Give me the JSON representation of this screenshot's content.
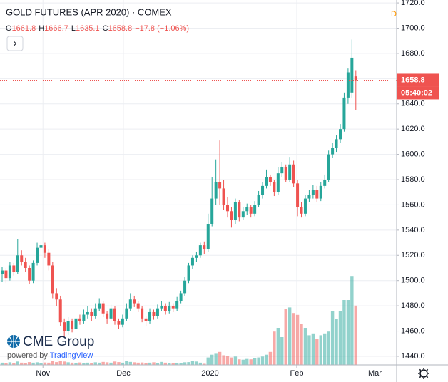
{
  "header": {
    "title": "GOLD FUTURES (APR 2020) · COMEX",
    "ohlc_labels": [
      "O",
      "H",
      "L",
      "C"
    ],
    "change": "−17.8 (−1.06%)",
    "interval": "D",
    "button": "›",
    "countdown": "05:40:02",
    "logo": "CME Group",
    "powered_by": "powered by",
    "powered_brand": "TradingView"
  },
  "chart_data": {
    "type": "candlestick",
    "candles": [
      [
        1505,
        1511,
        1499,
        1508
      ],
      [
        1508,
        1510,
        1498,
        1502
      ],
      [
        1502,
        1515,
        1500,
        1512
      ],
      [
        1512,
        1514,
        1504,
        1507
      ],
      [
        1507,
        1533,
        1505,
        1520
      ],
      [
        1520,
        1524,
        1512,
        1515
      ],
      [
        1515,
        1518,
        1507,
        1510
      ],
      [
        1510,
        1512,
        1497,
        1500
      ],
      [
        1500,
        1516,
        1498,
        1514
      ],
      [
        1514,
        1530,
        1512,
        1526
      ],
      [
        1526,
        1531,
        1520,
        1528
      ],
      [
        1528,
        1530,
        1518,
        1522
      ],
      [
        1522,
        1525,
        1508,
        1512
      ],
      [
        1512,
        1515,
        1486,
        1490
      ],
      [
        1490,
        1494,
        1480,
        1485
      ],
      [
        1485,
        1488,
        1464,
        1467
      ],
      [
        1467,
        1470,
        1455,
        1460
      ],
      [
        1460,
        1471,
        1457,
        1468
      ],
      [
        1468,
        1470,
        1459,
        1462
      ],
      [
        1462,
        1474,
        1460,
        1470
      ],
      [
        1470,
        1473,
        1465,
        1468
      ],
      [
        1468,
        1477,
        1466,
        1473
      ],
      [
        1473,
        1480,
        1470,
        1475
      ],
      [
        1475,
        1478,
        1468,
        1472
      ],
      [
        1472,
        1482,
        1470,
        1478
      ],
      [
        1478,
        1486,
        1476,
        1482
      ],
      [
        1482,
        1484,
        1471,
        1474
      ],
      [
        1474,
        1476,
        1466,
        1470
      ],
      [
        1470,
        1481,
        1468,
        1478
      ],
      [
        1478,
        1480,
        1465,
        1468
      ],
      [
        1468,
        1470,
        1462,
        1465
      ],
      [
        1465,
        1473,
        1463,
        1470
      ],
      [
        1470,
        1482,
        1468,
        1478
      ],
      [
        1478,
        1490,
        1476,
        1485
      ],
      [
        1485,
        1488,
        1479,
        1482
      ],
      [
        1482,
        1484,
        1475,
        1478
      ],
      [
        1478,
        1480,
        1467,
        1470
      ],
      [
        1470,
        1472,
        1464,
        1468
      ],
      [
        1468,
        1478,
        1466,
        1475
      ],
      [
        1475,
        1477,
        1469,
        1472
      ],
      [
        1472,
        1481,
        1470,
        1478
      ],
      [
        1478,
        1484,
        1476,
        1480
      ],
      [
        1480,
        1482,
        1473,
        1476
      ],
      [
        1476,
        1483,
        1474,
        1480
      ],
      [
        1480,
        1482,
        1475,
        1478
      ],
      [
        1478,
        1487,
        1476,
        1484
      ],
      [
        1484,
        1492,
        1482,
        1490
      ],
      [
        1490,
        1503,
        1488,
        1500
      ],
      [
        1500,
        1514,
        1498,
        1512
      ],
      [
        1512,
        1520,
        1509,
        1518
      ],
      [
        1518,
        1523,
        1515,
        1520
      ],
      [
        1520,
        1530,
        1518,
        1528
      ],
      [
        1528,
        1531,
        1521,
        1525
      ],
      [
        1525,
        1553,
        1523,
        1545
      ],
      [
        1545,
        1582,
        1543,
        1565
      ],
      [
        1565,
        1596,
        1560,
        1578
      ],
      [
        1578,
        1611,
        1560,
        1573
      ],
      [
        1573,
        1580,
        1556,
        1560
      ],
      [
        1560,
        1566,
        1550,
        1555
      ],
      [
        1555,
        1558,
        1542,
        1548
      ],
      [
        1548,
        1565,
        1545,
        1562
      ],
      [
        1562,
        1564,
        1547,
        1550
      ],
      [
        1550,
        1558,
        1548,
        1555
      ],
      [
        1555,
        1561,
        1552,
        1558
      ],
      [
        1558,
        1560,
        1550,
        1553
      ],
      [
        1553,
        1563,
        1551,
        1560
      ],
      [
        1560,
        1571,
        1558,
        1568
      ],
      [
        1568,
        1578,
        1565,
        1575
      ],
      [
        1575,
        1588,
        1573,
        1582
      ],
      [
        1582,
        1584,
        1575,
        1578
      ],
      [
        1578,
        1580,
        1567,
        1570
      ],
      [
        1570,
        1590,
        1568,
        1585
      ],
      [
        1585,
        1594,
        1582,
        1590
      ],
      [
        1590,
        1592,
        1578,
        1580
      ],
      [
        1580,
        1598,
        1578,
        1592
      ],
      [
        1592,
        1595,
        1574,
        1577
      ],
      [
        1577,
        1580,
        1551,
        1558
      ],
      [
        1558,
        1562,
        1550,
        1553
      ],
      [
        1553,
        1568,
        1551,
        1565
      ],
      [
        1565,
        1572,
        1562,
        1568
      ],
      [
        1568,
        1576,
        1565,
        1572
      ],
      [
        1572,
        1575,
        1562,
        1565
      ],
      [
        1565,
        1578,
        1563,
        1575
      ],
      [
        1575,
        1584,
        1573,
        1580
      ],
      [
        1580,
        1603,
        1578,
        1600
      ],
      [
        1600,
        1609,
        1597,
        1605
      ],
      [
        1605,
        1615,
        1602,
        1612
      ],
      [
        1612,
        1624,
        1609,
        1620
      ],
      [
        1620,
        1649,
        1618,
        1645
      ],
      [
        1645,
        1668,
        1640,
        1665
      ],
      [
        1649,
        1691,
        1645,
        1676.6
      ],
      [
        1661.8,
        1666.7,
        1635.1,
        1658.8
      ]
    ],
    "volume": [
      12,
      10,
      14,
      11,
      18,
      12,
      10,
      15,
      12,
      14,
      11,
      13,
      12,
      20,
      15,
      22,
      18,
      14,
      12,
      11,
      13,
      10,
      12,
      11,
      14,
      12,
      16,
      14,
      12,
      18,
      15,
      12,
      20,
      16,
      14,
      12,
      13,
      10,
      12,
      14,
      11,
      16,
      12,
      10,
      8,
      9,
      11,
      14,
      15,
      20,
      18,
      12,
      6,
      40,
      55,
      60,
      70,
      52,
      48,
      40,
      45,
      30,
      28,
      32,
      30,
      35,
      40,
      45,
      55,
      70,
      180,
      200,
      150,
      300,
      310,
      280,
      270,
      220,
      200,
      160,
      170,
      140,
      160,
      170,
      180,
      290,
      250,
      290,
      350,
      350,
      480,
      320
    ],
    "up_color": "#26a69a",
    "down_color": "#ef5350",
    "xlim": [
      -0.55,
      101.5
    ],
    "xticks": [
      {
        "value": 10.5,
        "label": "Nov"
      },
      {
        "value": 31.2,
        "label": "Dec"
      },
      {
        "value": 53.5,
        "label": "2020"
      },
      {
        "value": 75.8,
        "label": "Feb"
      },
      {
        "value": 95.9,
        "label": "Mar"
      }
    ],
    "ylim": [
      1433.2,
      1722.3
    ],
    "yticks": [
      {
        "value": 1440,
        "label": "1440.0"
      },
      {
        "value": 1460,
        "label": "1460.0"
      },
      {
        "value": 1480,
        "label": "1480.0"
      },
      {
        "value": 1500,
        "label": "1500.0"
      },
      {
        "value": 1520,
        "label": "1520.0"
      },
      {
        "value": 1540,
        "label": "1540.0"
      },
      {
        "value": 1560,
        "label": "1560.0"
      },
      {
        "value": 1580,
        "label": "1580.0"
      },
      {
        "value": 1600,
        "label": "1600.0"
      },
      {
        "value": 1620,
        "label": "1620.0"
      },
      {
        "value": 1640,
        "label": "1640.0"
      },
      {
        "value": 1660,
        "label": "1660.0"
      },
      {
        "value": 1680,
        "label": "1680.0"
      },
      {
        "value": 1700,
        "label": "1700.0"
      },
      {
        "value": 1720,
        "label": "1720.0"
      }
    ],
    "grid": true
  }
}
